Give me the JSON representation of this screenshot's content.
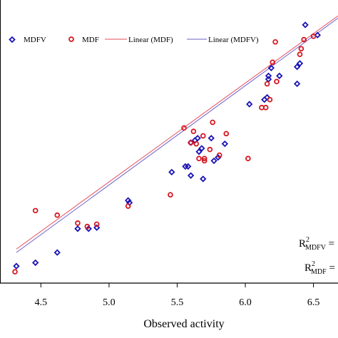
{
  "chart_data": {
    "type": "scatter",
    "title": "",
    "xlabel": "Observed activity",
    "ylabel": "",
    "xlim": [
      4.2,
      6.68
    ],
    "ylim": [
      4.2,
      6.7
    ],
    "xticks": [
      "4.5",
      "5.0",
      "5.5",
      "6.0",
      "6.5"
    ],
    "xtick_values": [
      4.5,
      5.0,
      5.5,
      6.0,
      6.5
    ],
    "grid": false,
    "legend_position": "top",
    "series": [
      {
        "name": "MDFV",
        "marker": "diamond",
        "color": "#1a14b4",
        "points": [
          [
            4.32,
            4.35
          ],
          [
            4.46,
            4.38
          ],
          [
            4.62,
            4.47
          ],
          [
            4.77,
            4.68
          ],
          [
            4.85,
            4.68
          ],
          [
            4.91,
            4.69
          ],
          [
            5.14,
            4.93
          ],
          [
            5.15,
            4.91
          ],
          [
            5.46,
            5.18
          ],
          [
            5.56,
            5.23
          ],
          [
            5.58,
            5.23
          ],
          [
            5.6,
            5.44
          ],
          [
            5.6,
            5.15
          ],
          [
            5.63,
            5.46
          ],
          [
            5.65,
            5.48
          ],
          [
            5.66,
            5.36
          ],
          [
            5.68,
            5.39
          ],
          [
            5.69,
            5.12
          ],
          [
            5.75,
            5.48
          ],
          [
            5.77,
            5.28
          ],
          [
            5.8,
            5.31
          ],
          [
            5.85,
            5.43
          ],
          [
            6.03,
            5.78
          ],
          [
            6.14,
            5.82
          ],
          [
            6.16,
            5.84
          ],
          [
            6.17,
            6.0
          ],
          [
            6.17,
            6.03
          ],
          [
            6.19,
            6.1
          ],
          [
            6.25,
            6.03
          ],
          [
            6.38,
            5.96
          ],
          [
            6.38,
            6.11
          ],
          [
            6.4,
            6.14
          ],
          [
            6.44,
            6.48
          ],
          [
            6.53,
            6.39
          ]
        ]
      },
      {
        "name": "MDF",
        "marker": "circle",
        "color": "#d6141e",
        "points": [
          [
            4.31,
            4.3
          ],
          [
            4.46,
            4.84
          ],
          [
            4.62,
            4.8
          ],
          [
            4.77,
            4.73
          ],
          [
            4.84,
            4.7
          ],
          [
            4.91,
            4.72
          ],
          [
            5.14,
            4.88
          ],
          [
            5.45,
            4.98
          ],
          [
            5.55,
            5.57
          ],
          [
            5.6,
            5.44
          ],
          [
            5.62,
            5.54
          ],
          [
            5.64,
            5.43
          ],
          [
            5.66,
            5.3
          ],
          [
            5.69,
            5.5
          ],
          [
            5.7,
            5.3
          ],
          [
            5.7,
            5.28
          ],
          [
            5.74,
            5.38
          ],
          [
            5.76,
            5.62
          ],
          [
            5.81,
            5.33
          ],
          [
            5.86,
            5.52
          ],
          [
            6.02,
            5.3
          ],
          [
            6.12,
            5.75
          ],
          [
            6.15,
            5.75
          ],
          [
            6.16,
            5.96
          ],
          [
            6.18,
            5.82
          ],
          [
            6.2,
            6.15
          ],
          [
            6.22,
            6.33
          ],
          [
            6.23,
            5.98
          ],
          [
            6.4,
            6.22
          ],
          [
            6.41,
            6.27
          ],
          [
            6.43,
            6.35
          ],
          [
            6.5,
            6.38
          ]
        ]
      }
    ],
    "lines": [
      {
        "name": "Linear (MDF)",
        "color": "#e64b5a",
        "x": [
          4.32,
          6.68
        ],
        "y": [
          4.5,
          6.56
        ]
      },
      {
        "name": "Linear (MDFV)",
        "color": "#6a5fc8",
        "x": [
          4.32,
          6.68
        ],
        "y": [
          4.47,
          6.54
        ]
      }
    ],
    "annotations": {
      "r2_mdfv_base": "R",
      "r2_mdfv_sup": "2",
      "r2_mdfv_sub": "MDFV",
      "r2_mdfv_tail": " =",
      "r2_mdf_base": "R",
      "r2_mdf_sup": "2",
      "r2_mdf_sub": "MDF",
      "r2_mdf_tail": " ="
    }
  }
}
